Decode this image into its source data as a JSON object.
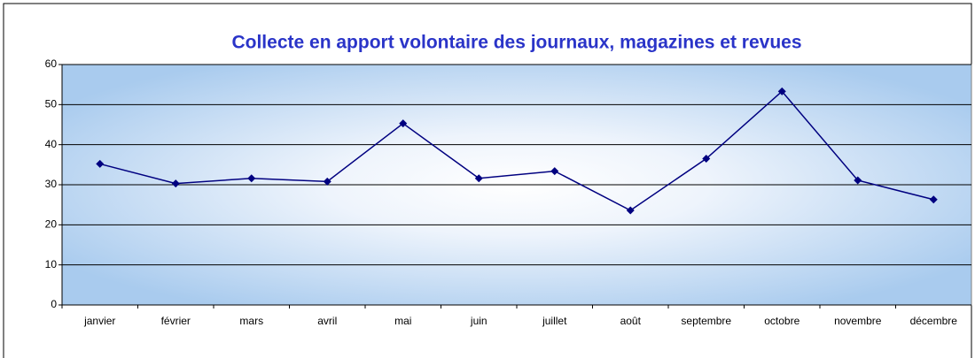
{
  "chart_data": {
    "type": "line",
    "title": "Collecte en apport volontaire des journaux, magazines et revues",
    "categories": [
      "janvier",
      "février",
      "mars",
      "avril",
      "mai",
      "juin",
      "juillet",
      "août",
      "septembre",
      "octobre",
      "novembre",
      "décembre"
    ],
    "series": [
      {
        "name": "Collecte",
        "color": "#000080",
        "values": [
          35.2,
          30.3,
          31.6,
          30.8,
          45.3,
          31.6,
          33.4,
          23.6,
          36.5,
          53.3,
          31.1,
          26.3
        ]
      }
    ],
    "ylim": [
      0,
      60
    ],
    "yticks": [
      0,
      10,
      20,
      30,
      40,
      50,
      60
    ],
    "grid": true
  }
}
